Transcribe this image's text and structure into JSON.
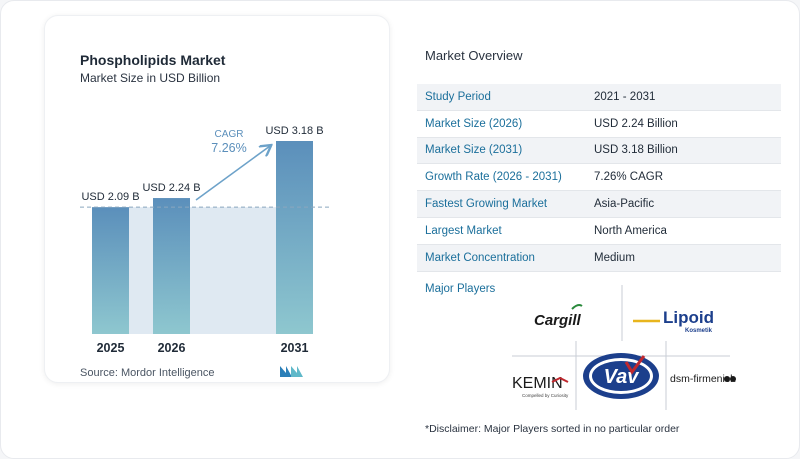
{
  "chart_data": {
    "type": "bar",
    "title": "Phospholipids Market",
    "subtitle": "Market Size in USD Billion",
    "categories": [
      "2025",
      "2026",
      "2031"
    ],
    "values": [
      2.09,
      2.24,
      3.18
    ],
    "value_labels": [
      "USD 2.09 B",
      "USD 2.24 B",
      "USD 3.18 B"
    ],
    "cagr_label": "CAGR",
    "cagr_value": "7.26%",
    "ylim": [
      0,
      3.18
    ],
    "colors": {
      "bar_top": "#5b8fbb",
      "bar_bottom": "#8ec7cf",
      "band": "#dfe9f2",
      "arrow": "#6da2c9",
      "cagr_text": "#5b8fbb"
    }
  },
  "source": "Source:  Mordor Intelligence",
  "overview": {
    "title": "Market Overview",
    "rows": [
      {
        "label": "Study Period",
        "value": "2021 - 2031"
      },
      {
        "label": "Market Size (2026)",
        "value": "USD 2.24 Billion"
      },
      {
        "label": "Market Size (2031)",
        "value": "USD 3.18 Billion"
      },
      {
        "label": "Growth Rate (2026 - 2031)",
        "value": "7.26% CAGR"
      },
      {
        "label": "Fastest Growing Market",
        "value": "Asia-Pacific"
      },
      {
        "label": "Largest Market",
        "value": "North America"
      },
      {
        "label": "Market Concentration",
        "value": "Medium"
      }
    ]
  },
  "players": {
    "title": "Major Players",
    "logos": [
      {
        "name": "Cargill",
        "text": "Cargill"
      },
      {
        "name": "Lipoid",
        "text": "Lipoid",
        "sub": "Kosmetik"
      },
      {
        "name": "Kemin",
        "text": "KEMIN",
        "sub": "Compelled by Curiosity"
      },
      {
        "name": "Vav",
        "text": "Vav"
      },
      {
        "name": "dsm-firmenich",
        "text": "dsm-firmenich"
      }
    ]
  },
  "disclaimer": "*Disclaimer: Major Players sorted in no particular order"
}
